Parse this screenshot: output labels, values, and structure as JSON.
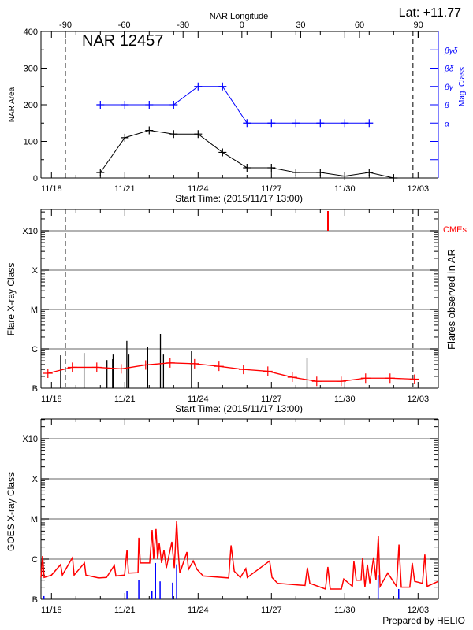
{
  "header": {
    "lat_label": "Lat: +11.77"
  },
  "footer": {
    "credit": "Prepared by HELIO"
  },
  "colors": {
    "area": "#000000",
    "mag_class": "#0000ff",
    "flare_background": "#ff0000",
    "cme": "#ff0000",
    "goes": "#ff0000",
    "goes_events": "#0000ff",
    "grid": "#999999",
    "flares": "#000000"
  },
  "chart_data": [
    {
      "type": "line",
      "title": "NAR 12457",
      "xlabel": "Start Time: (2015/11/17 13:00)",
      "xlim": [
        "2015-11-17 13:00",
        "2015-12-03 20:00"
      ],
      "x_tick_labels": [
        "11/18",
        "11/21",
        "11/24",
        "11/27",
        "11/30",
        "12/03"
      ],
      "x_tick_dates": [
        "2015-11-18 00:00",
        "2015-11-21 00:00",
        "2015-11-24 00:00",
        "2015-11-27 00:00",
        "2015-11-30 00:00",
        "2015-12-03 00:00"
      ],
      "top_axis": {
        "label": "NAR Longitude",
        "ticks": [
          "-90",
          "-60",
          "-30",
          "0",
          "30",
          "60",
          "90"
        ],
        "values": [
          -90,
          -60,
          -30,
          0,
          30,
          60,
          90
        ]
      },
      "limb_markers": [
        {
          "lon": -90,
          "date": "2015-11-18 13:40"
        },
        {
          "lon": 90,
          "date": "2015-12-02 19:00"
        }
      ],
      "ylabel": "NAR Area",
      "ylim": [
        0,
        400
      ],
      "y_ticks": [
        "0",
        "100",
        "200",
        "300",
        "400"
      ],
      "y2label": "Mag. Class",
      "y2_categories": [
        "α",
        "β",
        "βγ",
        "βδ",
        "βγδ"
      ],
      "series": [
        {
          "key": "area",
          "x": [
            "2015-11-20 00:00",
            "2015-11-21 00:00",
            "2015-11-22 00:00",
            "2015-11-23 00:00",
            "2015-11-24 00:00",
            "2015-11-25 00:00",
            "2015-11-26 00:00",
            "2015-11-27 00:00",
            "2015-11-28 00:00",
            "2015-11-29 00:00",
            "2015-11-30 00:00",
            "2015-12-01 00:00",
            "2015-12-02 00:00"
          ],
          "values": [
            15,
            110,
            130,
            120,
            120,
            70,
            28,
            28,
            15,
            15,
            5,
            15,
            0
          ]
        },
        {
          "key": "mag_class",
          "x": [
            "2015-11-20 00:00",
            "2015-11-21 00:00",
            "2015-11-22 00:00",
            "2015-11-23 00:00",
            "2015-11-24 00:00",
            "2015-11-25 00:00",
            "2015-11-26 00:00",
            "2015-11-27 00:00",
            "2015-11-28 00:00",
            "2015-11-29 00:00",
            "2015-11-30 00:00",
            "2015-12-01 00:00"
          ],
          "values": [
            "β",
            "β",
            "β",
            "β",
            "βγ",
            "βγ",
            "α",
            "α",
            "α",
            "α",
            "α",
            "α"
          ]
        }
      ]
    },
    {
      "type": "bar",
      "xlabel": "Start Time: (2015/11/17 13:00)",
      "xlim": [
        "2015-11-17 13:00",
        "2015-12-03 20:00"
      ],
      "x_tick_labels": [
        "11/18",
        "11/21",
        "11/24",
        "11/27",
        "11/30",
        "12/03"
      ],
      "ylabel": "Flare X-ray Class",
      "y_scale": "log",
      "ylim_flux": [
        1e-07,
        0.0036
      ],
      "y_ticks": [
        "B",
        "C",
        "M",
        "X",
        "X10"
      ],
      "y_tick_flux": [
        1e-07,
        1e-06,
        1e-05,
        0.0001,
        0.001
      ],
      "y2label": "Flares observed in AR",
      "cme_label": "CMEs",
      "cmes": [
        "2015-11-29 07:30"
      ],
      "limb_markers": [
        "2015-11-18 13:40",
        "2015-12-02 19:00"
      ],
      "flares": [
        {
          "date": "2015-11-18 09:00",
          "flux": 6.9e-07
        },
        {
          "date": "2015-11-19 08:00",
          "flux": 7.9e-07
        },
        {
          "date": "2015-11-20 06:30",
          "flux": 5.2e-07
        },
        {
          "date": "2015-11-20 12:00",
          "flux": 5.5e-07
        },
        {
          "date": "2015-11-20 12:30",
          "flux": 7.2e-07
        },
        {
          "date": "2015-11-21 02:00",
          "flux": 1.6e-06
        },
        {
          "date": "2015-11-21 04:00",
          "flux": 7.2e-07
        },
        {
          "date": "2015-11-21 22:30",
          "flux": 1.1e-06
        },
        {
          "date": "2015-11-22 11:00",
          "flux": 2.4e-06
        },
        {
          "date": "2015-11-22 14:00",
          "flux": 7.2e-07
        },
        {
          "date": "2015-11-23 17:30",
          "flux": 8.7e-07
        },
        {
          "date": "2015-11-28 11:00",
          "flux": 6e-07
        }
      ],
      "background": {
        "x": [
          "2015-11-17 20:30",
          "2015-11-18 20:30",
          "2015-11-19 20:30",
          "2015-11-20 20:30",
          "2015-11-21 20:30",
          "2015-11-22 20:30",
          "2015-11-23 20:30",
          "2015-11-24 20:30",
          "2015-11-25 20:30",
          "2015-11-26 20:30",
          "2015-11-27 20:30",
          "2015-11-28 20:30",
          "2015-11-29 20:30",
          "2015-11-30 20:30",
          "2015-12-01 20:30",
          "2015-12-02 20:30"
        ],
        "flux": [
          2.4e-07,
          3.4e-07,
          3.4e-07,
          3.1e-07,
          3.9e-07,
          4.4e-07,
          4.2e-07,
          3.6e-07,
          3e-07,
          2.7e-07,
          1.9e-07,
          1.5e-07,
          1.5e-07,
          1.8e-07,
          1.8e-07,
          1.7e-07
        ]
      }
    },
    {
      "type": "line",
      "xlim": [
        "2015-11-17 13:00",
        "2015-12-03 20:00"
      ],
      "x_tick_labels": [
        "11/18",
        "11/21",
        "11/24",
        "11/27",
        "11/30",
        "12/03"
      ],
      "ylabel": "GOES X-ray Class",
      "y_scale": "log",
      "y_ticks": [
        "B",
        "C",
        "M",
        "X",
        "X10"
      ],
      "goes": {
        "x": [
          "2015-11-17 13:40",
          "2015-11-17 15:15",
          "2015-11-17 16:50",
          "2015-11-18 00:00",
          "2015-11-18 09:00",
          "2015-11-18 10:40",
          "2015-11-18 20:40",
          "2015-11-18 22:15",
          "2015-11-19 08:20",
          "2015-11-19 09:50",
          "2015-11-19 22:15",
          "2015-11-20 06:00",
          "2015-11-20 13:40",
          "2015-11-20 15:15",
          "2015-11-20 23:45",
          "2015-11-21 02:10",
          "2015-11-21 03:40",
          "2015-11-21 13:00",
          "2015-11-21 13:45",
          "2015-11-21 15:15",
          "2015-11-22 00:30",
          "2015-11-22 02:50",
          "2015-11-22 04:20",
          "2015-11-22 06:40",
          "2015-11-22 08:15",
          "2015-11-22 09:50",
          "2015-11-22 12:10",
          "2015-11-22 14:30",
          "2015-11-22 16:50",
          "2015-11-22 22:15",
          "2015-11-23 00:35",
          "2015-11-23 02:55",
          "2015-11-23 04:30",
          "2015-11-23 06:00",
          "2015-11-23 13:00",
          "2015-11-23 14:30",
          "2015-11-23 19:10",
          "2015-11-23 23:00",
          "2015-11-24 05:00",
          "2015-11-25 06:00",
          "2015-11-25 08:20",
          "2015-11-25 11:30",
          "2015-11-25 17:30",
          "2015-11-25 22:50",
          "2015-11-26 00:20",
          "2015-11-26 22:15",
          "2015-11-27 00:35",
          "2015-11-27 06:00",
          "2015-11-28 09:00",
          "2015-11-28 11:20",
          "2015-11-28 13:40",
          "2015-11-29 05:00",
          "2015-11-29 07:25",
          "2015-11-29 09:45",
          "2015-11-29 20:40",
          "2015-11-29 23:00",
          "2015-11-30 07:30",
          "2015-11-30 09:00",
          "2015-11-30 11:20",
          "2015-11-30 16:00",
          "2015-11-30 17:30",
          "2015-11-30 19:50",
          "2015-11-30 22:15",
          "2015-12-01 00:35",
          "2015-12-01 04:20",
          "2015-12-01 06:40",
          "2015-12-01 09:00",
          "2015-12-01 10:40",
          "2015-12-01 18:15",
          "2015-12-02 02:50",
          "2015-12-02 05:15",
          "2015-12-02 07:30",
          "2015-12-02 15:50",
          "2015-12-02 18:15",
          "2015-12-02 20:40",
          "2015-12-03 04:20",
          "2015-12-03 06:40",
          "2015-12-03 09:00",
          "2015-12-03 19:50"
        ],
        "flux": [
          3.5e-07,
          1.2e-06,
          3.5e-07,
          4e-07,
          7.3e-07,
          4e-07,
          1.1e-06,
          4e-07,
          8e-07,
          4e-07,
          3.4e-07,
          3.5e-07,
          7e-07,
          3.8e-07,
          4e-07,
          1.7e-06,
          4.5e-07,
          4.6e-07,
          3.4e-06,
          8e-07,
          8e-07,
          5.3e-06,
          1e-06,
          5.6e-06,
          1e-06,
          2.5e-06,
          8e-07,
          1.7e-06,
          6e-07,
          2.7e-06,
          6e-07,
          8.8e-06,
          1.5e-06,
          4.5e-07,
          1.5e-06,
          5.5e-07,
          9e-07,
          5.5e-07,
          3.8e-07,
          3.4e-07,
          2.2e-06,
          5e-07,
          3.5e-07,
          5.8e-07,
          3.5e-07,
          9e-07,
          3.5e-07,
          2.5e-07,
          2.2e-07,
          6.1e-07,
          2.5e-07,
          1.8e-07,
          6.4e-07,
          1.8e-07,
          1.8e-07,
          3.2e-07,
          2.1e-07,
          8.9e-07,
          3e-07,
          3e-07,
          1.05e-06,
          2e-07,
          7.3e-07,
          2.5e-07,
          1.1e-06,
          3e-07,
          3.7e-06,
          2.1e-07,
          4.5e-07,
          2.1e-07,
          2.3e-06,
          2e-07,
          2e-07,
          8e-07,
          2.8e-07,
          2.5e-07,
          1.3e-06,
          2.1e-07,
          2.8e-07
        ]
      },
      "events": {
        "x": [
          "2015-11-17 16:35",
          "2015-11-21 02:10",
          "2015-11-21 13:45",
          "2015-11-22 02:40",
          "2015-11-22 06:10",
          "2015-11-22 10:40",
          "2015-11-22 22:55",
          "2015-11-23 02:55",
          "2015-12-01 08:50",
          "2015-12-02 05:00"
        ],
        "flux": [
          1.2e-07,
          1.6e-07,
          3e-07,
          1.6e-07,
          8e-07,
          2.8e-07,
          2.6e-07,
          7.4e-07,
          4e-07,
          1.8e-07
        ]
      }
    }
  ]
}
